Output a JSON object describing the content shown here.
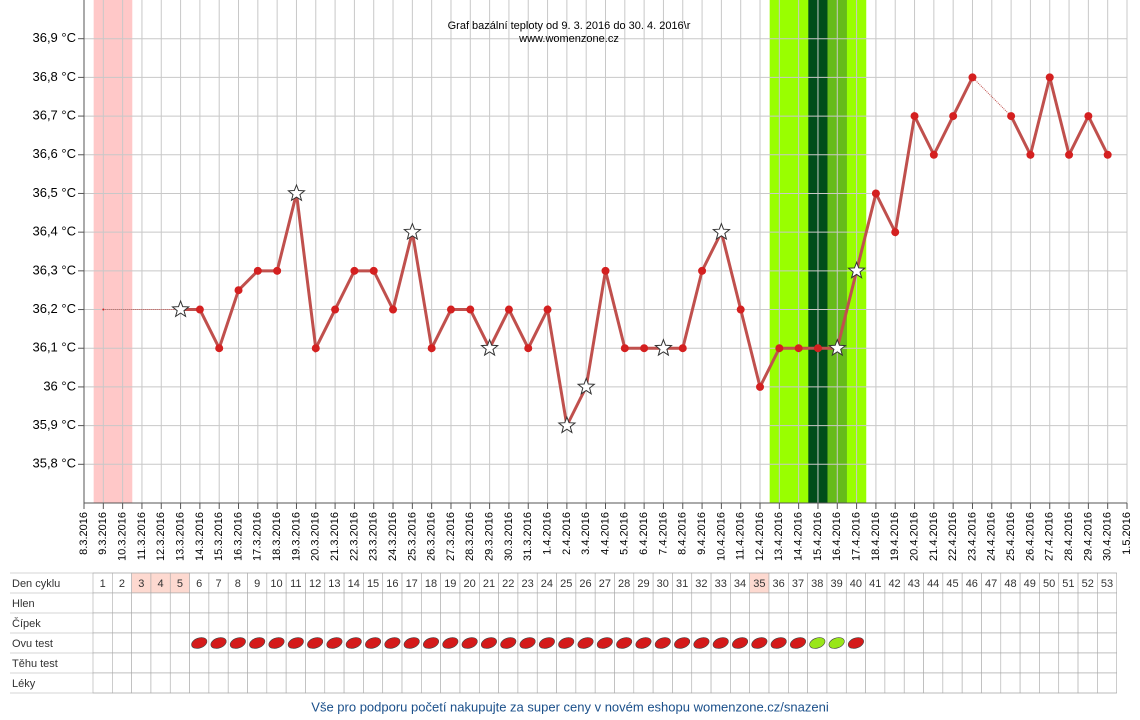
{
  "chart_data": {
    "type": "line",
    "title": "Graf bazální teploty od 9. 3. 2016 do 30. 4. 2016\\r",
    "subtitle": "www.womenzone.cz",
    "x": [
      "8.3.2016",
      "9.3.2016",
      "10.3.2016",
      "11.3.2016",
      "12.3.2016",
      "13.3.2016",
      "14.3.2016",
      "15.3.2016",
      "16.3.2016",
      "17.3.2016",
      "18.3.2016",
      "19.3.2016",
      "20.3.2016",
      "21.3.2016",
      "22.3.2016",
      "23.3.2016",
      "24.3.2016",
      "25.3.2016",
      "26.3.2016",
      "27.3.2016",
      "28.3.2016",
      "29.3.2016",
      "30.3.2016",
      "31.3.2016",
      "1.4.2016",
      "2.4.2016",
      "3.4.2016",
      "4.4.2016",
      "5.4.2016",
      "6.4.2016",
      "7.4.2016",
      "8.4.2016",
      "9.4.2016",
      "10.4.2016",
      "11.4.2016",
      "12.4.2016",
      "13.4.2016",
      "14.4.2016",
      "15.4.2016",
      "16.4.2016",
      "17.4.2016",
      "18.4.2016",
      "19.4.2016",
      "20.4.2016",
      "21.4.2016",
      "22.4.2016",
      "23.4.2016",
      "24.4.2016",
      "25.4.2016",
      "26.4.2016",
      "27.4.2016",
      "28.4.2016",
      "29.4.2016",
      "30.4.2016",
      "1.5.2016"
    ],
    "series": [
      {
        "color": "#c0504d",
        "marker_color": "#d42020",
        "values": [
          null,
          36.2,
          null,
          null,
          null,
          36.2,
          36.2,
          36.1,
          36.25,
          36.3,
          36.3,
          36.5,
          36.1,
          36.2,
          36.3,
          36.3,
          36.2,
          36.4,
          36.1,
          36.2,
          36.2,
          36.1,
          36.2,
          36.1,
          36.2,
          35.9,
          36.0,
          36.3,
          36.1,
          36.1,
          36.1,
          36.1,
          36.3,
          36.4,
          36.2,
          36.0,
          36.1,
          36.1,
          36.1,
          36.1,
          36.3,
          36.5,
          36.4,
          36.7,
          36.6,
          36.7,
          36.8,
          null,
          36.7,
          36.6,
          36.8,
          36.6,
          36.7,
          36.6,
          null
        ]
      }
    ],
    "star_points": [
      5,
      11,
      17,
      21,
      25,
      26,
      30,
      33,
      39,
      40
    ],
    "bands": [
      {
        "from": 1,
        "to": 2,
        "color": "#ffc8c8"
      },
      {
        "from": 36,
        "to": 40,
        "color": "#99ff00"
      },
      {
        "from": 38,
        "to": 38,
        "color": "#004d1a"
      },
      {
        "from": 39,
        "to": 39,
        "color": "#66bb1a"
      }
    ],
    "ylim": [
      35.7,
      37.0
    ],
    "yticks": [
      {
        "value": 35.8,
        "label": "35,8 °C"
      },
      {
        "value": 35.9,
        "label": "35,9 °C"
      },
      {
        "value": 36,
        "label": "36 °C"
      },
      {
        "value": 36.1,
        "label": "36,1 °C"
      },
      {
        "value": 36.2,
        "label": "36,2 °C"
      },
      {
        "value": 36.3,
        "label": "36,3 °C"
      },
      {
        "value": 36.4,
        "label": "36,4 °C"
      },
      {
        "value": 36.5,
        "label": "36,5 °C"
      },
      {
        "value": 36.6,
        "label": "36,6 °C"
      },
      {
        "value": 36.7,
        "label": "36,7 °C"
      },
      {
        "value": 36.8,
        "label": "36,8 °C"
      },
      {
        "value": 36.9,
        "label": "36,9 °C"
      }
    ],
    "grid": true
  },
  "table": {
    "rows": [
      {
        "label": "Den cyklu",
        "cells": [
          1,
          2,
          3,
          4,
          5,
          6,
          7,
          8,
          9,
          10,
          11,
          12,
          13,
          14,
          15,
          16,
          17,
          18,
          19,
          20,
          21,
          22,
          23,
          24,
          25,
          26,
          27,
          28,
          29,
          30,
          31,
          32,
          33,
          34,
          35,
          36,
          37,
          38,
          39,
          40,
          41,
          42,
          43,
          44,
          45,
          46,
          47,
          48,
          49,
          50,
          51,
          52,
          53
        ]
      },
      {
        "label": "Hlen"
      },
      {
        "label": "Čípek"
      },
      {
        "label": "Ovu test"
      },
      {
        "label": "Těhu test"
      },
      {
        "label": "Léky"
      }
    ],
    "highlight_days": [
      3,
      4,
      5,
      35
    ],
    "highlight_color": "#fdd9d0",
    "ovu_test_colors": [
      null,
      null,
      null,
      null,
      null,
      "#d41a1a",
      "#d41a1a",
      "#d41a1a",
      "#d41a1a",
      "#d41a1a",
      "#d41a1a",
      "#d41a1a",
      "#d41a1a",
      "#d41a1a",
      "#d41a1a",
      "#d41a1a",
      "#d41a1a",
      "#d41a1a",
      "#d41a1a",
      "#d41a1a",
      "#d41a1a",
      "#d41a1a",
      "#d41a1a",
      "#d41a1a",
      "#d41a1a",
      "#d41a1a",
      "#d41a1a",
      "#d41a1a",
      "#d41a1a",
      "#d41a1a",
      "#d41a1a",
      "#d41a1a",
      "#d41a1a",
      "#d41a1a",
      "#d41a1a",
      "#d41a1a",
      "#d41a1a",
      "#99e619",
      "#99e619",
      "#d41a1a",
      null,
      null,
      null,
      null,
      null,
      null,
      null,
      null,
      null,
      null,
      null,
      null,
      null
    ]
  },
  "footer": "Vše pro podporu početí nakupujte za super ceny v novém eshopu womenzone.cz/snazeni"
}
